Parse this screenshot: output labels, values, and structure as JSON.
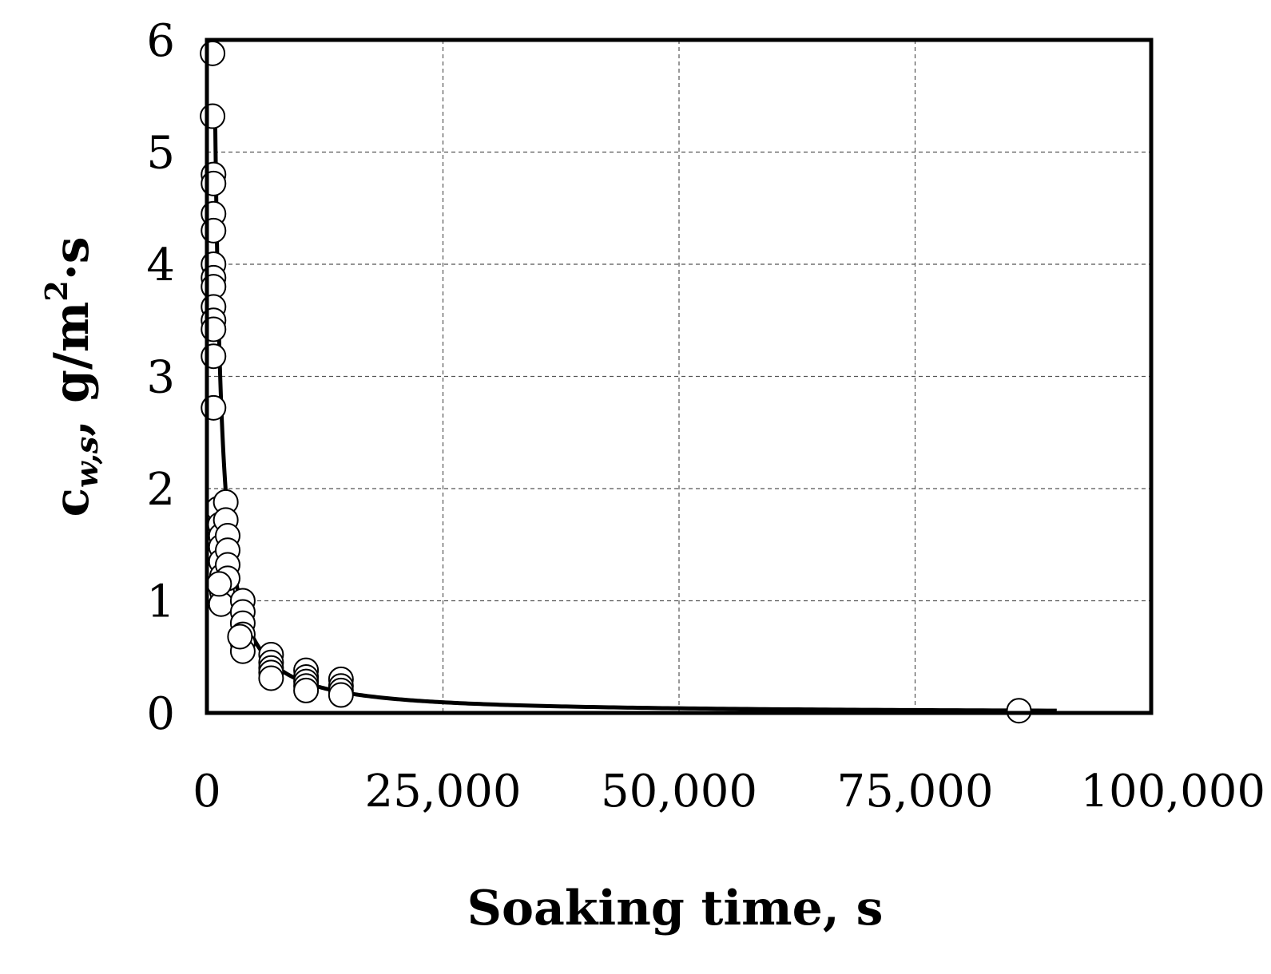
{
  "chart_data": {
    "type": "scatter",
    "xlabel": "Soaking time, s",
    "ylabel": {
      "c": "c",
      "sub": "w,s",
      "comma": ",",
      "unit": " g/m",
      "sup": "2",
      "tail": "·s"
    },
    "xlim": [
      0,
      100000
    ],
    "ylim": [
      0,
      6
    ],
    "x_ticks": [
      0,
      25000,
      50000,
      75000,
      100000
    ],
    "x_tick_labels": [
      "0",
      "25,000",
      "50,000",
      "75,000",
      "100,000"
    ],
    "y_ticks": [
      0,
      1,
      2,
      3,
      4,
      5,
      6
    ],
    "y_tick_labels": [
      "0",
      "1",
      "2",
      "3",
      "4",
      "5",
      "6"
    ],
    "grid": true,
    "legend": false,
    "series": [
      {
        "kind": "markers",
        "marker": "open-circle",
        "points": [
          [
            600,
            5.88
          ],
          [
            600,
            5.32
          ],
          [
            700,
            4.8
          ],
          [
            700,
            4.72
          ],
          [
            700,
            4.45
          ],
          [
            700,
            4.3
          ],
          [
            700,
            4.0
          ],
          [
            700,
            3.88
          ],
          [
            700,
            3.8
          ],
          [
            700,
            3.62
          ],
          [
            700,
            3.5
          ],
          [
            700,
            3.42
          ],
          [
            700,
            3.18
          ],
          [
            700,
            2.72
          ],
          [
            1200,
            1.82
          ],
          [
            1400,
            1.68
          ],
          [
            1500,
            1.58
          ],
          [
            1500,
            1.48
          ],
          [
            1500,
            1.35
          ],
          [
            1600,
            1.22
          ],
          [
            1600,
            1.08
          ],
          [
            1500,
            0.97
          ],
          [
            2000,
            1.88
          ],
          [
            2000,
            1.72
          ],
          [
            2200,
            1.58
          ],
          [
            2200,
            1.45
          ],
          [
            2200,
            1.32
          ],
          [
            2200,
            1.2
          ],
          [
            1300,
            1.15
          ],
          [
            3800,
            1.0
          ],
          [
            3800,
            0.9
          ],
          [
            3800,
            0.8
          ],
          [
            3800,
            0.7
          ],
          [
            3800,
            0.62
          ],
          [
            3800,
            0.55
          ],
          [
            3500,
            0.68
          ],
          [
            6800,
            0.52
          ],
          [
            6800,
            0.45
          ],
          [
            6800,
            0.4
          ],
          [
            6800,
            0.36
          ],
          [
            6800,
            0.31
          ],
          [
            10500,
            0.38
          ],
          [
            10500,
            0.32
          ],
          [
            10500,
            0.28
          ],
          [
            10500,
            0.24
          ],
          [
            10500,
            0.2
          ],
          [
            14200,
            0.3
          ],
          [
            14200,
            0.24
          ],
          [
            14200,
            0.2
          ],
          [
            14200,
            0.16
          ],
          [
            86000,
            0.02
          ]
        ]
      },
      {
        "kind": "fit-curve",
        "equation": "y = 18000 * x^-1.2 (clipped at 5.25)",
        "x_range": [
          100,
          90000
        ]
      }
    ]
  }
}
